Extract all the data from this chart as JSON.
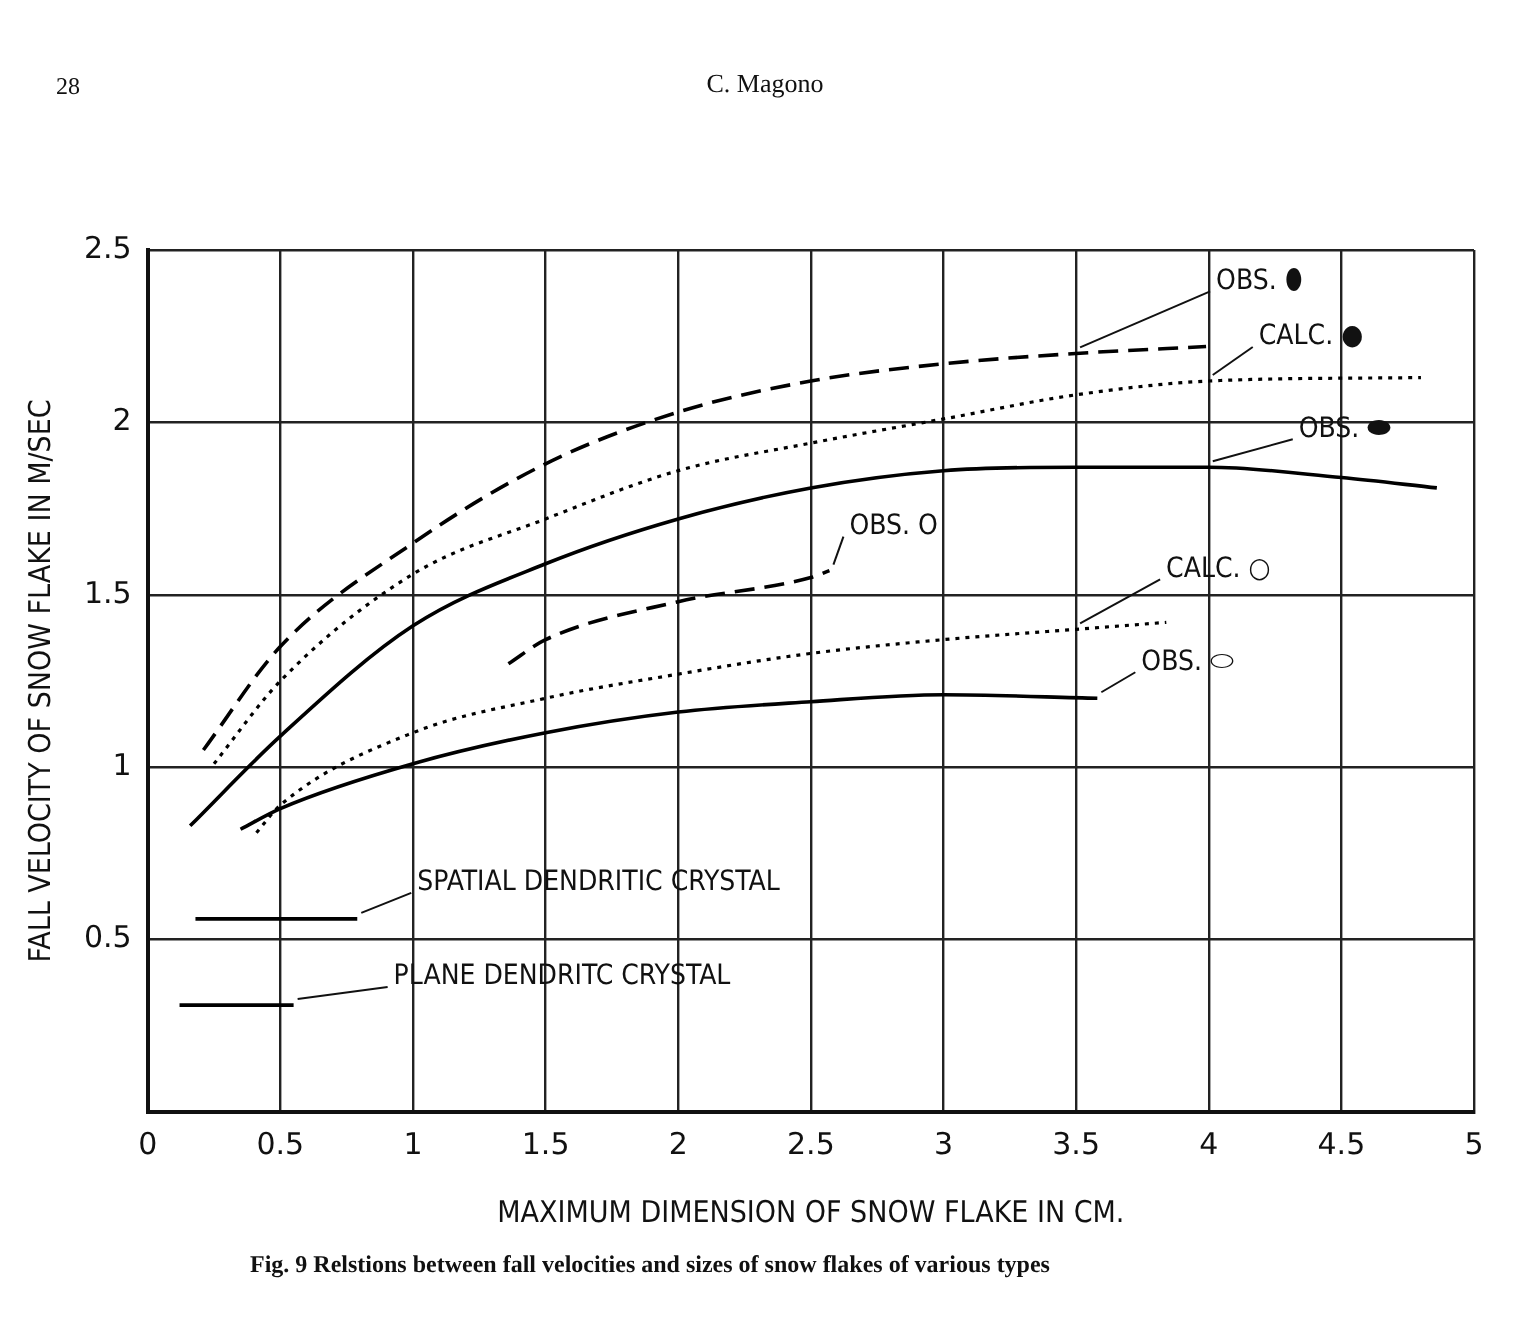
{
  "chart_data": {
    "type": "line",
    "xlabel": "MAXIMUM DIMENSION OF SNOW FLAKE IN CM.",
    "ylabel": "FALL VELOCITY OF SNOW FLAKE IN M/SEC",
    "annotations": [
      "28",
      "C. Magono",
      "Fig. 9  Relstions between fall velocities and sizes of snow flakes of various types"
    ],
    "xlim": [
      0,
      5
    ],
    "xticks": [
      0,
      0.5,
      1,
      1.5,
      2,
      2.5,
      3,
      3.5,
      4,
      4.5,
      5
    ],
    "ylim": [
      0,
      2.5
    ],
    "yticks": [
      {
        "value": 0,
        "label": null
      },
      0.5,
      1,
      1.5,
      2,
      2.5
    ],
    "grid": true,
    "legend": false,
    "marker": "none",
    "series": [
      {
        "name": "OBS. ⬮",
        "color": "#000000",
        "line_style": "dashed",
        "x": [
          0.21,
          0.5,
          1,
          1.5,
          2,
          2.5,
          3,
          3.5,
          3.99
        ],
        "values": [
          1.05,
          1.35,
          1.65,
          1.88,
          2.03,
          2.12,
          2.17,
          2.2,
          2.22
        ]
      },
      {
        "name": "CALC. ●",
        "color": "#000000",
        "line_style": "dotted",
        "x": [
          0.25,
          0.5,
          1,
          1.5,
          2,
          2.5,
          3,
          3.5,
          4,
          4.8
        ],
        "values": [
          1.01,
          1.25,
          1.56,
          1.72,
          1.86,
          1.94,
          2.01,
          2.08,
          2.12,
          2.13
        ]
      },
      {
        "name": "OBS. ⬬",
        "color": "#000000",
        "line_style": "solid",
        "x": [
          0.16,
          0.5,
          1,
          1.5,
          2,
          2.5,
          3,
          3.5,
          4,
          4.5,
          4.86
        ],
        "values": [
          0.83,
          1.09,
          1.41,
          1.59,
          1.72,
          1.81,
          1.86,
          1.87,
          1.87,
          1.84,
          1.81
        ]
      },
      {
        "name": "OBS. O",
        "color": "#000000",
        "line_style": "dashed",
        "x": [
          1.36,
          1.5,
          2,
          2.5,
          2.57
        ],
        "values": [
          1.3,
          1.37,
          1.48,
          1.55,
          1.57
        ]
      },
      {
        "name": "CALC. ○",
        "color": "#000000",
        "line_style": "dotted",
        "x": [
          0.41,
          0.5,
          1,
          1.5,
          2,
          2.5,
          3,
          3.5,
          3.84
        ],
        "values": [
          0.81,
          0.89,
          1.1,
          1.2,
          1.27,
          1.33,
          1.37,
          1.4,
          1.42
        ]
      },
      {
        "name": "OBS. ⬭",
        "color": "#000000",
        "line_style": "solid",
        "x": [
          0.35,
          0.5,
          1,
          1.5,
          2,
          2.5,
          3,
          3.58
        ],
        "values": [
          0.82,
          0.88,
          1.01,
          1.1,
          1.16,
          1.19,
          1.21,
          1.2
        ]
      },
      {
        "name": "SPATIAL DENDRITIC CRYSTAL",
        "color": "#000000",
        "line_style": "solid",
        "x": [
          0.18,
          0.79
        ],
        "values": [
          0.56,
          0.56
        ]
      },
      {
        "name": "PLANE DENDRITC CRYSTAL",
        "color": "#000000",
        "line_style": "solid",
        "x": [
          0.12,
          0.55
        ],
        "values": [
          0.31,
          0.31
        ]
      }
    ]
  }
}
